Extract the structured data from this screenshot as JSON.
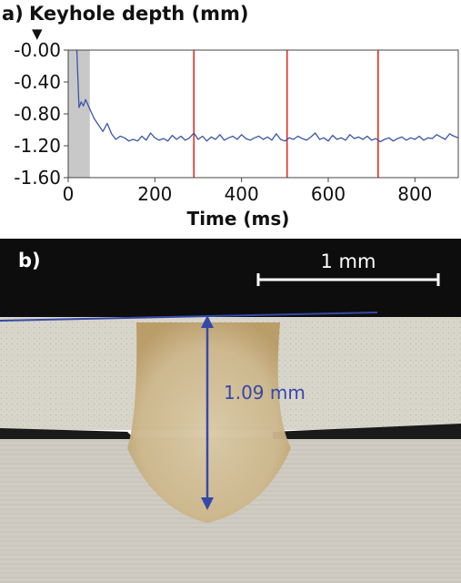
{
  "panel_a": {
    "label": "a)",
    "title": "Keyhole depth (mm)",
    "marker": "▼"
  },
  "panel_b": {
    "label": "b)",
    "scale_bar_label": "1 mm",
    "depth_label": "1.09 mm"
  },
  "chart_data": {
    "type": "line",
    "title": "Keyhole depth (mm)",
    "xlabel": "Time (ms)",
    "ylabel": "",
    "xlim": [
      0,
      900
    ],
    "ylim": [
      -1.6,
      0.0
    ],
    "y_ticks": [
      "-0.00",
      "-0.40",
      "-0.80",
      "-1.20",
      "-1.60"
    ],
    "x_ticks": [
      "0",
      "200",
      "400",
      "600",
      "800"
    ],
    "shaded_region": {
      "x_start": 0,
      "x_end": 50,
      "color": "#c8c8c8"
    },
    "vertical_lines": {
      "x": [
        290,
        505,
        715
      ],
      "color": "#e03020"
    },
    "series": [
      {
        "color": "#3a55a8",
        "x": [
          20,
          25,
          30,
          35,
          40,
          45,
          50,
          55,
          60,
          70,
          80,
          90,
          100,
          110,
          120,
          130,
          140,
          150,
          160,
          170,
          180,
          190,
          200,
          210,
          220,
          230,
          240,
          250,
          260,
          270,
          280,
          290,
          300,
          310,
          320,
          330,
          340,
          350,
          360,
          370,
          380,
          390,
          400,
          410,
          420,
          430,
          440,
          450,
          460,
          470,
          480,
          490,
          500,
          510,
          520,
          530,
          540,
          550,
          560,
          570,
          580,
          590,
          600,
          610,
          620,
          630,
          640,
          650,
          660,
          670,
          680,
          690,
          700,
          710,
          720,
          730,
          740,
          750,
          760,
          770,
          780,
          790,
          800,
          810,
          820,
          830,
          840,
          850,
          860,
          870,
          880,
          890,
          900
        ],
        "y": [
          0.0,
          -0.72,
          -0.65,
          -0.7,
          -0.62,
          -0.68,
          -0.74,
          -0.8,
          -0.86,
          -0.94,
          -1.02,
          -0.92,
          -1.05,
          -1.12,
          -1.08,
          -1.1,
          -1.14,
          -1.12,
          -1.14,
          -1.08,
          -1.13,
          -1.04,
          -1.1,
          -1.13,
          -1.11,
          -1.14,
          -1.07,
          -1.12,
          -1.08,
          -1.13,
          -1.1,
          -1.04,
          -1.12,
          -1.08,
          -1.14,
          -1.09,
          -1.12,
          -1.06,
          -1.13,
          -1.1,
          -1.08,
          -1.12,
          -1.06,
          -1.11,
          -1.13,
          -1.1,
          -1.08,
          -1.12,
          -1.09,
          -1.13,
          -1.05,
          -1.12,
          -1.14,
          -1.1,
          -1.12,
          -1.08,
          -1.11,
          -1.13,
          -1.09,
          -1.04,
          -1.12,
          -1.1,
          -1.14,
          -1.07,
          -1.12,
          -1.1,
          -1.13,
          -1.06,
          -1.11,
          -1.09,
          -1.12,
          -1.08,
          -1.13,
          -1.11,
          -1.15,
          -1.12,
          -1.1,
          -1.14,
          -1.11,
          -1.09,
          -1.13,
          -1.1,
          -1.12,
          -1.08,
          -1.13,
          -1.1,
          -1.11,
          -1.06,
          -1.09,
          -1.12,
          -1.05,
          -1.08,
          -1.1
        ]
      }
    ]
  }
}
